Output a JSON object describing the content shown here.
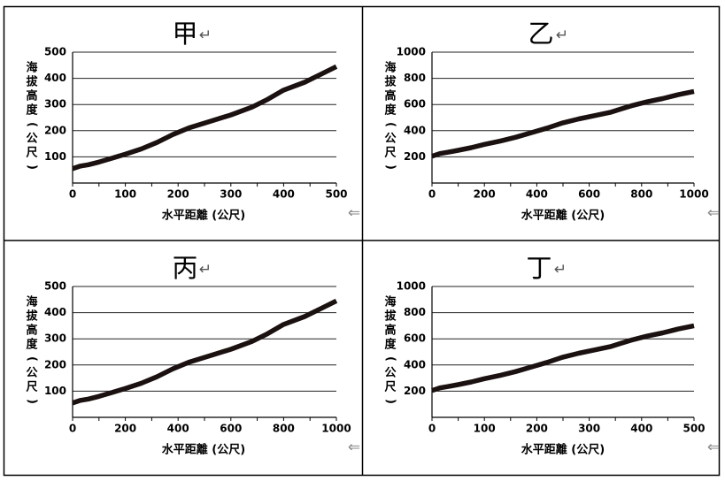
{
  "chart_data": [
    {
      "type": "line",
      "title": "甲",
      "xlabel": "水平距離 (公尺)",
      "ylabel": "海拔高度 (公尺)",
      "xlim": [
        0,
        500
      ],
      "ylim": [
        0,
        500
      ],
      "xticks": [
        0,
        100,
        200,
        300,
        400,
        500
      ],
      "yticks": [
        100,
        200,
        300,
        400,
        500
      ],
      "grid": "horizontal",
      "series": [
        {
          "x": [
            0,
            15,
            30,
            50,
            75,
            100,
            130,
            160,
            190,
            220,
            260,
            300,
            340,
            370,
            400,
            440,
            470,
            500
          ],
          "y": [
            55,
            65,
            70,
            80,
            95,
            110,
            130,
            155,
            185,
            210,
            235,
            260,
            290,
            320,
            355,
            385,
            415,
            445
          ]
        }
      ]
    },
    {
      "type": "line",
      "title": "乙",
      "xlabel": "水平距離 (公尺)",
      "ylabel": "海拔高度 (公尺)",
      "xlim": [
        0,
        1000
      ],
      "ylim": [
        0,
        1000
      ],
      "xticks": [
        0,
        200,
        400,
        600,
        800,
        1000
      ],
      "yticks": [
        200,
        400,
        600,
        800,
        1000
      ],
      "grid": "horizontal",
      "series": [
        {
          "x": [
            0,
            30,
            60,
            100,
            150,
            200,
            260,
            320,
            380,
            440,
            500,
            560,
            620,
            680,
            720,
            760,
            820,
            880,
            940,
            1000
          ],
          "y": [
            205,
            225,
            235,
            250,
            270,
            295,
            320,
            350,
            385,
            420,
            460,
            490,
            515,
            540,
            565,
            590,
            620,
            645,
            675,
            700
          ]
        }
      ]
    },
    {
      "type": "line",
      "title": "丙",
      "xlabel": "水平距離 (公尺)",
      "ylabel": "海拔高度 (公尺)",
      "xlim": [
        0,
        1000
      ],
      "ylim": [
        0,
        500
      ],
      "xticks": [
        0,
        200,
        400,
        600,
        800,
        1000
      ],
      "yticks": [
        100,
        200,
        300,
        400,
        500
      ],
      "grid": "horizontal",
      "series": [
        {
          "x": [
            0,
            30,
            60,
            100,
            150,
            200,
            260,
            320,
            380,
            440,
            520,
            600,
            680,
            740,
            800,
            880,
            940,
            1000
          ],
          "y": [
            55,
            65,
            70,
            80,
            95,
            110,
            130,
            155,
            185,
            210,
            235,
            260,
            290,
            320,
            355,
            385,
            415,
            445
          ]
        }
      ]
    },
    {
      "type": "line",
      "title": "丁",
      "xlabel": "水平距離 (公尺)",
      "ylabel": "海拔高度 (公尺)",
      "xlim": [
        0,
        500
      ],
      "ylim": [
        0,
        1000
      ],
      "xticks": [
        0,
        100,
        200,
        300,
        400,
        500
      ],
      "yticks": [
        200,
        400,
        600,
        800,
        1000
      ],
      "grid": "horizontal",
      "series": [
        {
          "x": [
            0,
            15,
            30,
            50,
            75,
            100,
            130,
            160,
            190,
            220,
            250,
            280,
            310,
            340,
            360,
            380,
            410,
            440,
            470,
            500
          ],
          "y": [
            205,
            225,
            235,
            250,
            270,
            295,
            320,
            350,
            385,
            420,
            460,
            490,
            515,
            540,
            565,
            590,
            620,
            645,
            675,
            700
          ]
        }
      ]
    }
  ],
  "return_mark": "↵",
  "arrow_mark": "⇐"
}
